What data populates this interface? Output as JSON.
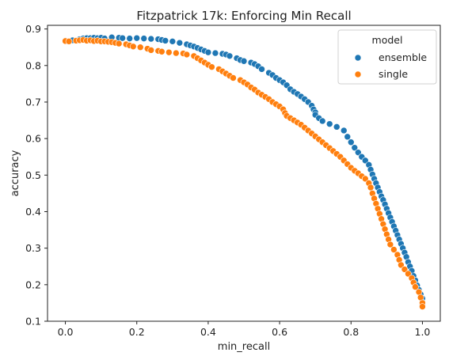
{
  "chart_data": {
    "type": "scatter",
    "title": "Fitzpatrick 17k: Enforcing Min Recall",
    "xlabel": "min_recall",
    "ylabel": "accuracy",
    "xlim": [
      -0.05,
      1.05
    ],
    "ylim": [
      0.1,
      0.91
    ],
    "xticks": [
      "0.0",
      "0.2",
      "0.4",
      "0.6",
      "0.8",
      "1.0"
    ],
    "yticks": [
      "0.1",
      "0.2",
      "0.3",
      "0.4",
      "0.5",
      "0.6",
      "0.7",
      "0.8",
      "0.9"
    ],
    "grid": false,
    "legend": {
      "title": "model",
      "placement": "top-right"
    },
    "series": [
      {
        "name": "ensemble",
        "color": "#1f77b4",
        "points": [
          [
            0.0,
            0.868
          ],
          [
            0.02,
            0.869
          ],
          [
            0.04,
            0.872
          ],
          [
            0.05,
            0.874
          ],
          [
            0.06,
            0.875
          ],
          [
            0.07,
            0.875
          ],
          [
            0.08,
            0.876
          ],
          [
            0.09,
            0.875
          ],
          [
            0.1,
            0.876
          ],
          [
            0.11,
            0.874
          ],
          [
            0.13,
            0.877
          ],
          [
            0.15,
            0.876
          ],
          [
            0.16,
            0.875
          ],
          [
            0.18,
            0.874
          ],
          [
            0.2,
            0.875
          ],
          [
            0.22,
            0.874
          ],
          [
            0.24,
            0.873
          ],
          [
            0.26,
            0.872
          ],
          [
            0.27,
            0.87
          ],
          [
            0.28,
            0.868
          ],
          [
            0.3,
            0.866
          ],
          [
            0.32,
            0.862
          ],
          [
            0.34,
            0.858
          ],
          [
            0.35,
            0.855
          ],
          [
            0.36,
            0.852
          ],
          [
            0.37,
            0.848
          ],
          [
            0.38,
            0.844
          ],
          [
            0.39,
            0.84
          ],
          [
            0.4,
            0.836
          ],
          [
            0.42,
            0.834
          ],
          [
            0.44,
            0.832
          ],
          [
            0.45,
            0.83
          ],
          [
            0.46,
            0.826
          ],
          [
            0.48,
            0.82
          ],
          [
            0.49,
            0.815
          ],
          [
            0.5,
            0.812
          ],
          [
            0.52,
            0.808
          ],
          [
            0.53,
            0.804
          ],
          [
            0.54,
            0.798
          ],
          [
            0.55,
            0.79
          ],
          [
            0.57,
            0.78
          ],
          [
            0.58,
            0.774
          ],
          [
            0.59,
            0.766
          ],
          [
            0.6,
            0.76
          ],
          [
            0.61,
            0.754
          ],
          [
            0.62,
            0.746
          ],
          [
            0.63,
            0.735
          ],
          [
            0.64,
            0.728
          ],
          [
            0.65,
            0.722
          ],
          [
            0.66,
            0.715
          ],
          [
            0.67,
            0.708
          ],
          [
            0.68,
            0.7
          ],
          [
            0.69,
            0.69
          ],
          [
            0.695,
            0.68
          ],
          [
            0.7,
            0.672
          ],
          [
            0.7,
            0.665
          ],
          [
            0.71,
            0.656
          ],
          [
            0.72,
            0.648
          ],
          [
            0.74,
            0.64
          ],
          [
            0.76,
            0.632
          ],
          [
            0.78,
            0.622
          ],
          [
            0.79,
            0.605
          ],
          [
            0.8,
            0.59
          ],
          [
            0.81,
            0.575
          ],
          [
            0.82,
            0.562
          ],
          [
            0.83,
            0.55
          ],
          [
            0.84,
            0.54
          ],
          [
            0.85,
            0.528
          ],
          [
            0.855,
            0.515
          ],
          [
            0.86,
            0.502
          ],
          [
            0.865,
            0.49
          ],
          [
            0.87,
            0.478
          ],
          [
            0.875,
            0.466
          ],
          [
            0.88,
            0.454
          ],
          [
            0.885,
            0.442
          ],
          [
            0.89,
            0.432
          ],
          [
            0.895,
            0.42
          ],
          [
            0.9,
            0.408
          ],
          [
            0.905,
            0.396
          ],
          [
            0.91,
            0.384
          ],
          [
            0.915,
            0.372
          ],
          [
            0.92,
            0.36
          ],
          [
            0.925,
            0.348
          ],
          [
            0.93,
            0.336
          ],
          [
            0.935,
            0.324
          ],
          [
            0.94,
            0.312
          ],
          [
            0.945,
            0.3
          ],
          [
            0.95,
            0.288
          ],
          [
            0.955,
            0.276
          ],
          [
            0.96,
            0.262
          ],
          [
            0.965,
            0.25
          ],
          [
            0.97,
            0.238
          ],
          [
            0.975,
            0.224
          ],
          [
            0.98,
            0.212
          ],
          [
            0.985,
            0.198
          ],
          [
            0.99,
            0.186
          ],
          [
            0.995,
            0.174
          ],
          [
            1.0,
            0.162
          ],
          [
            1.0,
            0.152
          ],
          [
            1.0,
            0.145
          ]
        ]
      },
      {
        "name": "single",
        "color": "#ff7f0e",
        "points": [
          [
            0.0,
            0.867
          ],
          [
            0.01,
            0.866
          ],
          [
            0.03,
            0.868
          ],
          [
            0.04,
            0.869
          ],
          [
            0.05,
            0.87
          ],
          [
            0.06,
            0.868
          ],
          [
            0.07,
            0.869
          ],
          [
            0.08,
            0.867
          ],
          [
            0.09,
            0.868
          ],
          [
            0.1,
            0.866
          ],
          [
            0.11,
            0.866
          ],
          [
            0.12,
            0.865
          ],
          [
            0.13,
            0.864
          ],
          [
            0.14,
            0.862
          ],
          [
            0.15,
            0.86
          ],
          [
            0.17,
            0.858
          ],
          [
            0.18,
            0.855
          ],
          [
            0.19,
            0.852
          ],
          [
            0.21,
            0.85
          ],
          [
            0.23,
            0.846
          ],
          [
            0.24,
            0.842
          ],
          [
            0.26,
            0.84
          ],
          [
            0.27,
            0.838
          ],
          [
            0.29,
            0.836
          ],
          [
            0.31,
            0.834
          ],
          [
            0.33,
            0.833
          ],
          [
            0.34,
            0.83
          ],
          [
            0.36,
            0.826
          ],
          [
            0.37,
            0.82
          ],
          [
            0.38,
            0.814
          ],
          [
            0.39,
            0.808
          ],
          [
            0.4,
            0.802
          ],
          [
            0.41,
            0.796
          ],
          [
            0.43,
            0.79
          ],
          [
            0.44,
            0.784
          ],
          [
            0.45,
            0.778
          ],
          [
            0.46,
            0.772
          ],
          [
            0.47,
            0.766
          ],
          [
            0.49,
            0.76
          ],
          [
            0.5,
            0.754
          ],
          [
            0.51,
            0.748
          ],
          [
            0.52,
            0.74
          ],
          [
            0.53,
            0.734
          ],
          [
            0.54,
            0.726
          ],
          [
            0.55,
            0.72
          ],
          [
            0.56,
            0.714
          ],
          [
            0.57,
            0.708
          ],
          [
            0.58,
            0.7
          ],
          [
            0.59,
            0.694
          ],
          [
            0.6,
            0.688
          ],
          [
            0.61,
            0.68
          ],
          [
            0.615,
            0.67
          ],
          [
            0.62,
            0.662
          ],
          [
            0.63,
            0.656
          ],
          [
            0.64,
            0.65
          ],
          [
            0.65,
            0.644
          ],
          [
            0.66,
            0.638
          ],
          [
            0.67,
            0.63
          ],
          [
            0.68,
            0.622
          ],
          [
            0.69,
            0.614
          ],
          [
            0.7,
            0.606
          ],
          [
            0.71,
            0.598
          ],
          [
            0.72,
            0.59
          ],
          [
            0.73,
            0.582
          ],
          [
            0.74,
            0.574
          ],
          [
            0.75,
            0.566
          ],
          [
            0.76,
            0.558
          ],
          [
            0.77,
            0.55
          ],
          [
            0.78,
            0.54
          ],
          [
            0.79,
            0.53
          ],
          [
            0.8,
            0.52
          ],
          [
            0.81,
            0.512
          ],
          [
            0.82,
            0.505
          ],
          [
            0.83,
            0.497
          ],
          [
            0.84,
            0.49
          ],
          [
            0.85,
            0.478
          ],
          [
            0.855,
            0.466
          ],
          [
            0.86,
            0.45
          ],
          [
            0.865,
            0.436
          ],
          [
            0.87,
            0.422
          ],
          [
            0.875,
            0.408
          ],
          [
            0.88,
            0.394
          ],
          [
            0.885,
            0.38
          ],
          [
            0.89,
            0.366
          ],
          [
            0.895,
            0.352
          ],
          [
            0.9,
            0.338
          ],
          [
            0.905,
            0.324
          ],
          [
            0.91,
            0.31
          ],
          [
            0.92,
            0.296
          ],
          [
            0.93,
            0.282
          ],
          [
            0.935,
            0.268
          ],
          [
            0.94,
            0.254
          ],
          [
            0.95,
            0.242
          ],
          [
            0.96,
            0.23
          ],
          [
            0.97,
            0.218
          ],
          [
            0.975,
            0.206
          ],
          [
            0.98,
            0.194
          ],
          [
            0.99,
            0.18
          ],
          [
            0.995,
            0.165
          ],
          [
            1.0,
            0.15
          ],
          [
            1.0,
            0.14
          ]
        ]
      }
    ]
  }
}
